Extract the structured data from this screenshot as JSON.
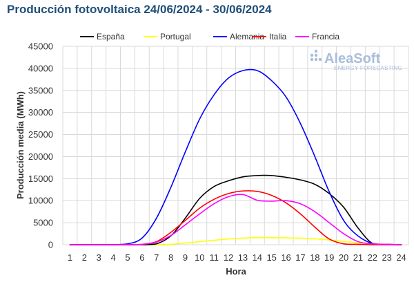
{
  "chart_data": {
    "type": "line",
    "title": "Producción fotovoltaica 24/06/2024 - 30/06/2024",
    "xlabel": "Hora",
    "ylabel": "Producción media (MWh)",
    "x": [
      1,
      2,
      3,
      4,
      5,
      6,
      7,
      8,
      9,
      10,
      11,
      12,
      13,
      14,
      15,
      16,
      17,
      18,
      19,
      20,
      21,
      22,
      23,
      24
    ],
    "ylim": [
      0,
      45000
    ],
    "yticks": [
      0,
      5000,
      10000,
      15000,
      20000,
      25000,
      30000,
      35000,
      40000,
      45000
    ],
    "ytick_labels": [
      "0",
      "5000",
      "10000",
      "15000",
      "20000",
      "25000",
      "30000",
      "35000",
      "40000",
      "45000"
    ],
    "xtick_labels": [
      "1",
      "2",
      "3",
      "4",
      "5",
      "6",
      "7",
      "8",
      "9",
      "10",
      "11",
      "12",
      "13",
      "14",
      "15",
      "16",
      "17",
      "18",
      "19",
      "20",
      "21",
      "22",
      "23",
      "24"
    ],
    "grid": true,
    "legend_position": "top",
    "series": [
      {
        "name": "España",
        "color": "#000000",
        "values": [
          0,
          0,
          0,
          0,
          0,
          0,
          200,
          2000,
          6000,
          10500,
          13200,
          14500,
          15400,
          15700,
          15700,
          15300,
          14700,
          13700,
          11600,
          8500,
          3800,
          300,
          100,
          0
        ]
      },
      {
        "name": "Portugal",
        "color": "#ffff00",
        "values": [
          0,
          0,
          0,
          0,
          0,
          0,
          0,
          100,
          400,
          700,
          1000,
          1300,
          1500,
          1600,
          1600,
          1550,
          1500,
          1350,
          1100,
          800,
          400,
          100,
          0,
          0
        ]
      },
      {
        "name": "Alemania",
        "color": "#0000ff",
        "values": [
          0,
          0,
          0,
          0,
          200,
          1500,
          6000,
          13000,
          21000,
          28500,
          34000,
          37800,
          39500,
          39500,
          37200,
          33500,
          27500,
          20000,
          12000,
          5500,
          2000,
          300,
          100,
          0
        ]
      },
      {
        "name": "Italia",
        "color": "#ff0000",
        "values": [
          0,
          0,
          0,
          0,
          0,
          100,
          700,
          2800,
          5500,
          8300,
          10300,
          11600,
          12200,
          12100,
          11200,
          9500,
          7000,
          4000,
          1300,
          200,
          100,
          0,
          0,
          0
        ]
      },
      {
        "name": "Francia",
        "color": "#ff00ff",
        "values": [
          0,
          0,
          0,
          0,
          0,
          100,
          600,
          2100,
          4500,
          7000,
          9300,
          10900,
          11400,
          10100,
          9900,
          10000,
          9300,
          7500,
          5000,
          2500,
          700,
          200,
          100,
          0
        ]
      }
    ]
  },
  "watermark": {
    "brand": "AleaSoft",
    "tagline": "ENERGY FORECASTING"
  }
}
